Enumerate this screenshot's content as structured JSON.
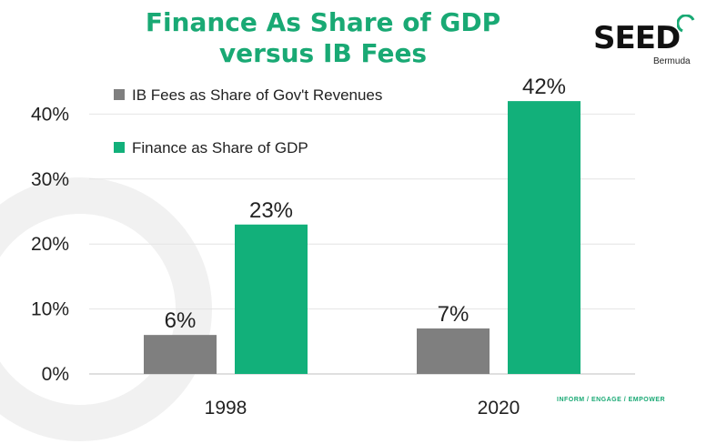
{
  "header": {
    "title_line1": "Finance As Share of GDP",
    "title_line2": "versus IB Fees"
  },
  "logo": {
    "name": "SEED",
    "subtitle": "Bermuda",
    "tagline": "INFORM / ENGAGE / EMPOWER"
  },
  "colors": {
    "title": "#19a974",
    "ib_fees": "#7f7f7f",
    "finance": "#12b07a"
  },
  "chart_data": {
    "type": "bar",
    "categories": [
      "1998",
      "2020"
    ],
    "series": [
      {
        "name": "IB Fees as Share of Gov't Revenues",
        "values": [
          6,
          7
        ],
        "labels": [
          "6%",
          "7%"
        ],
        "color": "#7f7f7f"
      },
      {
        "name": "Finance as Share of GDP",
        "values": [
          23,
          42
        ],
        "labels": [
          "23%",
          "42%"
        ],
        "color": "#12b07a"
      }
    ],
    "yticks": [
      0,
      10,
      20,
      30,
      40
    ],
    "ytick_labels": [
      "0%",
      "10%",
      "20%",
      "30%",
      "40%"
    ],
    "ylim": [
      0,
      42
    ],
    "grid": true,
    "legend_position": "top-left"
  }
}
